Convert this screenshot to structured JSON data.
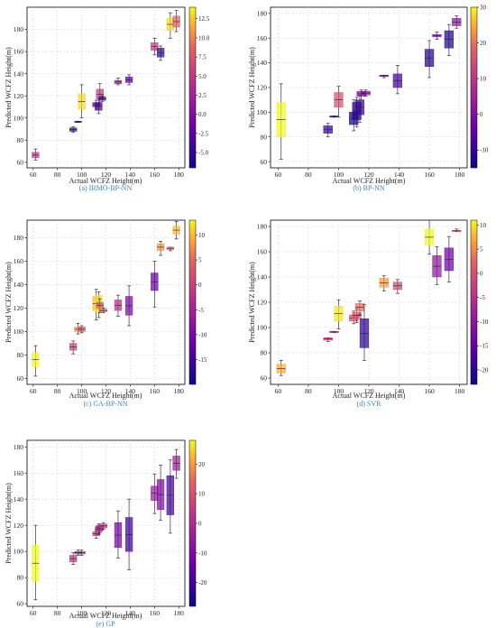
{
  "chart_data": [
    {
      "type": "box",
      "caption": "(a) IRMO-BP-NN",
      "xlabel": "Actual WCFZ Height(m)",
      "ylabel": "Predicted WCFZ Height(m)",
      "xlim": [
        55,
        185
      ],
      "ylim": [
        55,
        200
      ],
      "xticks": [
        60,
        80,
        100,
        120,
        140,
        160,
        180
      ],
      "yticks": [
        60,
        80,
        100,
        120,
        140,
        160,
        180
      ],
      "grid": true,
      "colorbar": {
        "range": [
          -7,
          14
        ],
        "ticks": [
          -5.0,
          -2.5,
          0.0,
          2.5,
          5.0,
          7.5,
          10.0,
          12.5
        ]
      },
      "boxes": [
        {
          "x": 62,
          "q1": 64,
          "q3": 69,
          "wlo": 62,
          "whi": 72,
          "c": 5
        },
        {
          "x": 93,
          "q1": 88,
          "q3": 91,
          "wlo": 87,
          "whi": 92,
          "c": -5
        },
        {
          "x": 97,
          "q1": 96,
          "q3": 97,
          "wlo": 96,
          "whi": 97,
          "c": -6
        },
        {
          "x": 100,
          "q1": 108,
          "q3": 122,
          "wlo": 100,
          "whi": 130,
          "c": 13
        },
        {
          "x": 112,
          "q1": 110,
          "q3": 114,
          "wlo": 108,
          "whi": 116,
          "c": -2
        },
        {
          "x": 114,
          "q1": 107,
          "q3": 114,
          "wlo": 104,
          "whi": 117,
          "c": -3
        },
        {
          "x": 115,
          "q1": 117,
          "q3": 126,
          "wlo": 112,
          "whi": 131,
          "c": 5
        },
        {
          "x": 117,
          "q1": 116,
          "q3": 119,
          "wlo": 115,
          "whi": 120,
          "c": -5
        },
        {
          "x": 130,
          "q1": 131,
          "q3": 134,
          "wlo": 130,
          "whi": 136,
          "c": 2
        },
        {
          "x": 139,
          "q1": 132,
          "q3": 137,
          "wlo": 130,
          "whi": 139,
          "c": -2
        },
        {
          "x": 160,
          "q1": 161,
          "q3": 168,
          "wlo": 157,
          "whi": 172,
          "c": 5
        },
        {
          "x": 165,
          "q1": 155,
          "q3": 163,
          "wlo": 152,
          "whi": 165,
          "c": -5
        },
        {
          "x": 173,
          "q1": 179,
          "q3": 190,
          "wlo": 172,
          "whi": 195,
          "c": 13
        },
        {
          "x": 178,
          "q1": 182,
          "q3": 192,
          "wlo": 178,
          "whi": 197,
          "c": 8
        }
      ]
    },
    {
      "type": "box",
      "caption": "(b) BP-NN",
      "xlabel": "Actual WCFZ Height(m)",
      "ylabel": "Predicted WCFZ Height(m)",
      "xlim": [
        55,
        185
      ],
      "ylim": [
        55,
        185
      ],
      "xticks": [
        60,
        80,
        100,
        120,
        140,
        160,
        180
      ],
      "yticks": [
        60,
        80,
        100,
        120,
        140,
        160,
        180
      ],
      "grid": true,
      "colorbar": {
        "range": [
          -15,
          30
        ],
        "ticks": [
          -10,
          0,
          10,
          20,
          30
        ]
      },
      "boxes": [
        {
          "x": 62,
          "q1": 80,
          "q3": 108,
          "wlo": 62,
          "whi": 123,
          "c": 30
        },
        {
          "x": 93,
          "q1": 83,
          "q3": 89,
          "wlo": 80,
          "whi": 91,
          "c": -10
        },
        {
          "x": 97,
          "q1": 96,
          "q3": 97,
          "wlo": 96,
          "whi": 97,
          "c": -12
        },
        {
          "x": 100,
          "q1": 104,
          "q3": 116,
          "wlo": 96,
          "whi": 121,
          "c": 15
        },
        {
          "x": 110,
          "q1": 90,
          "q3": 100,
          "wlo": 85,
          "whi": 110,
          "c": -15
        },
        {
          "x": 112,
          "q1": 94,
          "q3": 108,
          "wlo": 88,
          "whi": 112,
          "c": -12
        },
        {
          "x": 114,
          "q1": 98,
          "q3": 110,
          "wlo": 92,
          "whi": 114,
          "c": -10
        },
        {
          "x": 115,
          "q1": 113,
          "q3": 117,
          "wlo": 110,
          "whi": 118,
          "c": 0
        },
        {
          "x": 118,
          "q1": 114,
          "q3": 117,
          "wlo": 113,
          "whi": 118,
          "c": 0
        },
        {
          "x": 130,
          "q1": 129,
          "q3": 130,
          "wlo": 128,
          "whi": 130,
          "c": -2
        },
        {
          "x": 139,
          "q1": 120,
          "q3": 131,
          "wlo": 115,
          "whi": 138,
          "c": -8
        },
        {
          "x": 160,
          "q1": 137,
          "q3": 151,
          "wlo": 128,
          "whi": 158,
          "c": -12
        },
        {
          "x": 165,
          "q1": 161,
          "q3": 163,
          "wlo": 159,
          "whi": 165,
          "c": 0
        },
        {
          "x": 173,
          "q1": 152,
          "q3": 166,
          "wlo": 146,
          "whi": 171,
          "c": -12
        },
        {
          "x": 178,
          "q1": 170,
          "q3": 176,
          "wlo": 168,
          "whi": 178,
          "c": 2
        }
      ]
    },
    {
      "type": "box",
      "caption": "(c) GA-BP-NN",
      "xlabel": "Actual WCFZ Height(m)",
      "ylabel": "Predicted WCFZ Height(m)",
      "xlim": [
        55,
        185
      ],
      "ylim": [
        55,
        195
      ],
      "xticks": [
        60,
        80,
        100,
        120,
        140,
        160,
        180
      ],
      "yticks": [
        60,
        80,
        100,
        120,
        140,
        160,
        180
      ],
      "grid": true,
      "colorbar": {
        "range": [
          -20,
          13
        ],
        "ticks": [
          -15,
          -10,
          -5,
          0,
          5,
          10
        ]
      },
      "boxes": [
        {
          "x": 62,
          "q1": 70,
          "q3": 82,
          "wlo": 62,
          "whi": 88,
          "c": 13
        },
        {
          "x": 93,
          "q1": 84,
          "q3": 90,
          "wlo": 81,
          "whi": 92,
          "c": 0
        },
        {
          "x": 97,
          "q1": 100,
          "q3": 104,
          "wlo": 98,
          "whi": 107,
          "c": 8
        },
        {
          "x": 100,
          "q1": 100,
          "q3": 104,
          "wlo": 99,
          "whi": 105,
          "c": 3
        },
        {
          "x": 112,
          "q1": 118,
          "q3": 130,
          "wlo": 110,
          "whi": 136,
          "c": 10
        },
        {
          "x": 114,
          "q1": 117,
          "q3": 131,
          "wlo": 112,
          "whi": 134,
          "c": 12
        },
        {
          "x": 115,
          "q1": 120,
          "q3": 125,
          "wlo": 116,
          "whi": 128,
          "c": 4
        },
        {
          "x": 118,
          "q1": 117,
          "q3": 119,
          "wlo": 116,
          "whi": 120,
          "c": 2
        },
        {
          "x": 130,
          "q1": 118,
          "q3": 127,
          "wlo": 113,
          "whi": 131,
          "c": -3
        },
        {
          "x": 139,
          "q1": 114,
          "q3": 130,
          "wlo": 105,
          "whi": 139,
          "c": -10
        },
        {
          "x": 160,
          "q1": 135,
          "q3": 150,
          "wlo": 121,
          "whi": 160,
          "c": -12
        },
        {
          "x": 165,
          "q1": 169,
          "q3": 175,
          "wlo": 165,
          "whi": 177,
          "c": 8
        },
        {
          "x": 173,
          "q1": 170,
          "q3": 172,
          "wlo": 169,
          "whi": 172,
          "c": 3
        },
        {
          "x": 178,
          "q1": 183,
          "q3": 190,
          "wlo": 179,
          "whi": 194,
          "c": 10
        }
      ]
    },
    {
      "type": "box",
      "caption": "(d) SVR",
      "xlabel": "Actual WCFZ Height(m)",
      "ylabel": "Predicted WCFZ Height(m)",
      "xlim": [
        55,
        185
      ],
      "ylim": [
        55,
        185
      ],
      "xticks": [
        60,
        80,
        100,
        120,
        140,
        160,
        180
      ],
      "yticks": [
        60,
        80,
        100,
        120,
        140,
        160,
        180
      ],
      "grid": true,
      "colorbar": {
        "range": [
          -23,
          11
        ],
        "ticks": [
          -20,
          -15,
          -10,
          -5,
          0,
          5,
          10
        ]
      },
      "boxes": [
        {
          "x": 62,
          "q1": 64,
          "q3": 71,
          "wlo": 62,
          "whi": 74,
          "c": 7
        },
        {
          "x": 93,
          "q1": 90,
          "q3": 92,
          "wlo": 89,
          "whi": 92,
          "c": -3
        },
        {
          "x": 97,
          "q1": 96,
          "q3": 97,
          "wlo": 96,
          "whi": 97,
          "c": -5
        },
        {
          "x": 100,
          "q1": 105,
          "q3": 117,
          "wlo": 99,
          "whi": 122,
          "c": 10
        },
        {
          "x": 110,
          "q1": 105,
          "q3": 110,
          "wlo": 103,
          "whi": 113,
          "c": 0
        },
        {
          "x": 112,
          "q1": 107,
          "q3": 112,
          "wlo": 104,
          "whi": 115,
          "c": 1
        },
        {
          "x": 114,
          "q1": 113,
          "q3": 119,
          "wlo": 110,
          "whi": 121,
          "c": 3
        },
        {
          "x": 117,
          "q1": 84,
          "q3": 107,
          "wlo": 74,
          "whi": 118,
          "c": -20
        },
        {
          "x": 130,
          "q1": 132,
          "q3": 139,
          "wlo": 129,
          "whi": 141,
          "c": 6
        },
        {
          "x": 139,
          "q1": 130,
          "q3": 136,
          "wlo": 127,
          "whi": 138,
          "c": -1
        },
        {
          "x": 160,
          "q1": 165,
          "q3": 178,
          "wlo": 158,
          "whi": 185,
          "c": 11
        },
        {
          "x": 165,
          "q1": 140,
          "q3": 157,
          "wlo": 134,
          "whi": 164,
          "c": -10
        },
        {
          "x": 173,
          "q1": 145,
          "q3": 163,
          "wlo": 136,
          "whi": 172,
          "c": -14
        },
        {
          "x": 178,
          "q1": 176,
          "q3": 177,
          "wlo": 176,
          "whi": 178,
          "c": 0
        }
      ]
    },
    {
      "type": "box",
      "caption": "(e) GP",
      "xlabel": "Actual WCFZ Height(m)",
      "ylabel": "Predicted WCFZ Height(m)",
      "xlim": [
        55,
        185
      ],
      "ylim": [
        58,
        185
      ],
      "xticks": [
        60,
        80,
        100,
        120,
        140,
        160,
        180
      ],
      "yticks": [
        60,
        80,
        100,
        120,
        140,
        160,
        180
      ],
      "grid": true,
      "colorbar": {
        "range": [
          -28,
          28
        ],
        "ticks": [
          -20,
          -10,
          0,
          10,
          20
        ]
      },
      "boxes": [
        {
          "x": 62,
          "q1": 77,
          "q3": 105,
          "wlo": 63,
          "whi": 120,
          "c": 28
        },
        {
          "x": 93,
          "q1": 92,
          "q3": 97,
          "wlo": 90,
          "whi": 99,
          "c": 3
        },
        {
          "x": 97,
          "q1": 98,
          "q3": 100,
          "wlo": 97,
          "whi": 101,
          "c": -2
        },
        {
          "x": 100,
          "q1": 98,
          "q3": 100,
          "wlo": 97,
          "whi": 101,
          "c": 2
        },
        {
          "x": 112,
          "q1": 112,
          "q3": 115,
          "wlo": 110,
          "whi": 116,
          "c": 3
        },
        {
          "x": 114,
          "q1": 115,
          "q3": 119,
          "wlo": 113,
          "whi": 121,
          "c": 2
        },
        {
          "x": 115,
          "q1": 116,
          "q3": 120,
          "wlo": 114,
          "whi": 121,
          "c": -3
        },
        {
          "x": 118,
          "q1": 118,
          "q3": 121,
          "wlo": 117,
          "whi": 122,
          "c": 5
        },
        {
          "x": 130,
          "q1": 103,
          "q3": 122,
          "wlo": 95,
          "whi": 131,
          "c": -12
        },
        {
          "x": 139,
          "q1": 100,
          "q3": 126,
          "wlo": 86,
          "whi": 140,
          "c": -20
        },
        {
          "x": 160,
          "q1": 139,
          "q3": 150,
          "wlo": 129,
          "whi": 159,
          "c": -5
        },
        {
          "x": 165,
          "q1": 132,
          "q3": 155,
          "wlo": 124,
          "whi": 166,
          "c": -10
        },
        {
          "x": 173,
          "q1": 128,
          "q3": 158,
          "wlo": 114,
          "whi": 170,
          "c": -20
        },
        {
          "x": 178,
          "q1": 162,
          "q3": 173,
          "wlo": 156,
          "whi": 178,
          "c": -5
        }
      ]
    }
  ]
}
